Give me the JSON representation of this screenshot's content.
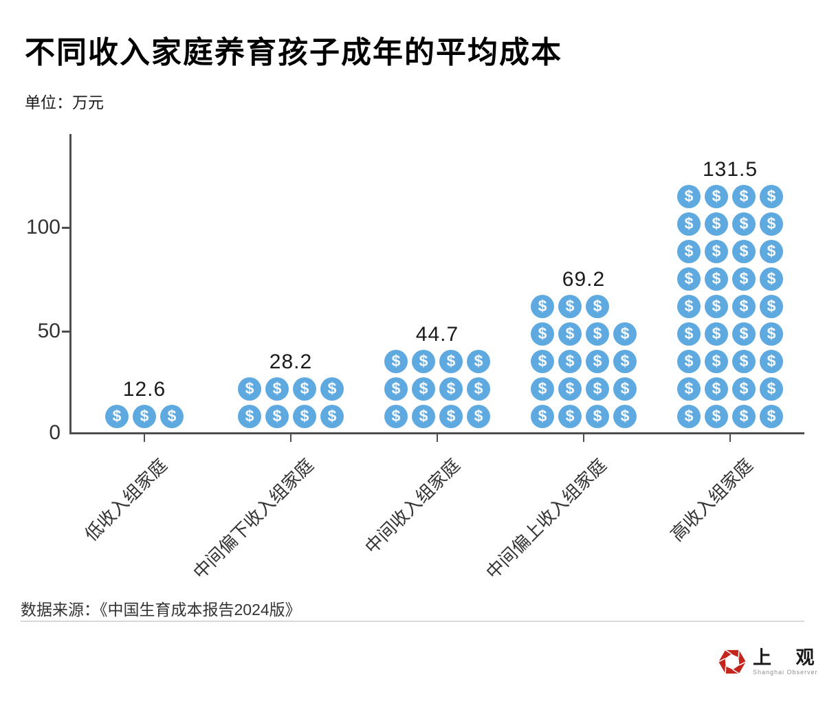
{
  "title": "不同收入家庭养育孩子成年的平均成本",
  "unit_label": "单位：万元",
  "source": "数据来源：《中国生育成本报告2024版》",
  "logo": {
    "name_cn": "上 观",
    "name_en": "Shanghai Observer",
    "brand_red": "#C4261D"
  },
  "colors": {
    "coin_blue": "#5FA9E1",
    "coin_symbol": "#F7FBFE",
    "axis": "#4d4d4d",
    "tick_label": "#333333",
    "value_label": "#1a1a1a"
  },
  "chart_data": {
    "type": "bar",
    "subtype": "pictograph",
    "title": "不同收入家庭养育孩子成年的平均成本",
    "unit": "万元",
    "categories": [
      "低收入组家庭",
      "中间偏下收入组家庭",
      "中间收入组家庭",
      "中间偏上收入组家庭",
      "高收入组家庭"
    ],
    "values": [
      12.6,
      28.2,
      44.7,
      69.2,
      131.5
    ],
    "icon": "dollar-coin",
    "icon_symbol": "$",
    "icon_counts": [
      3,
      8,
      12,
      19,
      36
    ],
    "icons_per_row": 4,
    "yticks": [
      "0",
      "50",
      "100"
    ],
    "ylim": [
      0,
      145
    ],
    "grid": false,
    "legend": false,
    "xlabel": "",
    "ylabel": ""
  }
}
